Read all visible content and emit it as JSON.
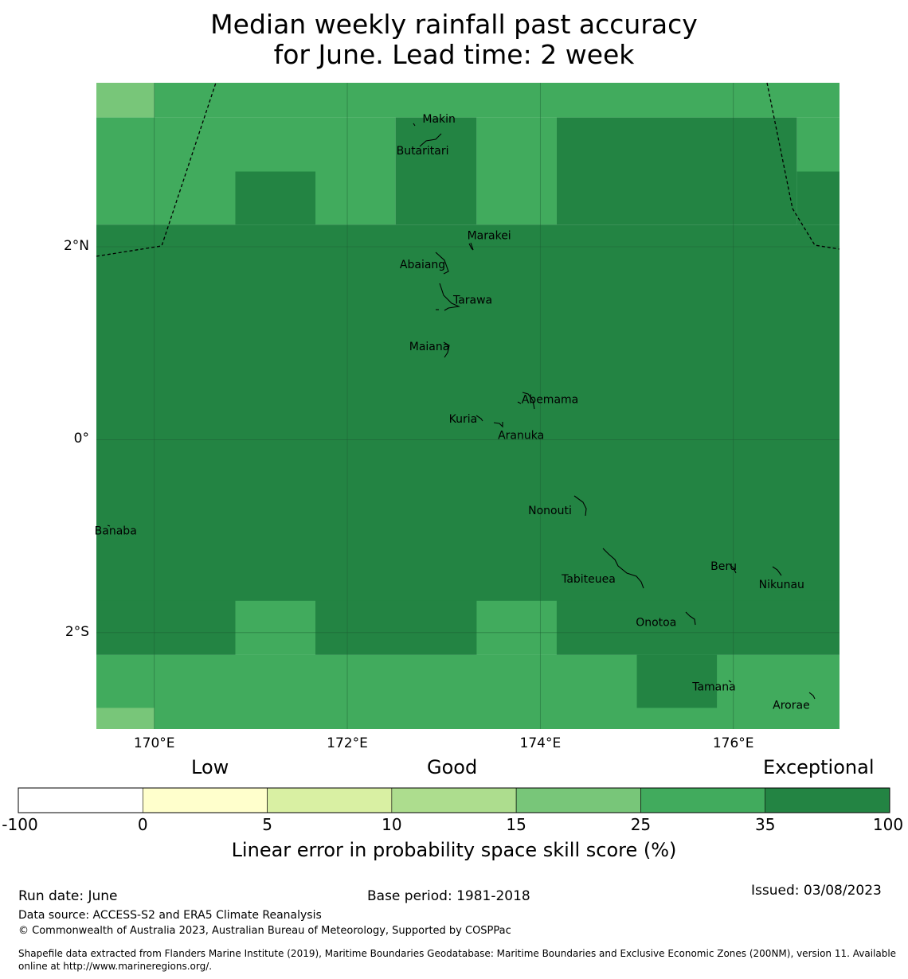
{
  "title_line1": "Median weekly rainfall past accuracy",
  "title_line2": "for June. Lead time: 2 week",
  "map": {
    "lon_range": [
      169.4,
      177.1
    ],
    "lat_range": [
      -3.0,
      3.7
    ],
    "xticks": [
      {
        "lon": 170,
        "label": "170°E"
      },
      {
        "lon": 172,
        "label": "172°E"
      },
      {
        "lon": 174,
        "label": "174°E"
      },
      {
        "lon": 176,
        "label": "176°E"
      }
    ],
    "yticks": [
      {
        "lat": 2,
        "label": "2°N"
      },
      {
        "lat": 0,
        "label": "0°"
      },
      {
        "lat": -2,
        "label": "2°S"
      }
    ],
    "skill_grid_cells": [
      {
        "lon": [
          169.4,
          170.0
        ],
        "lat": [
          3.34,
          3.7
        ],
        "class": "15-25"
      },
      {
        "lon": [
          170.0,
          177.1
        ],
        "lat": [
          3.34,
          3.7
        ],
        "class": "25-35"
      },
      {
        "lon": [
          169.4,
          172.5
        ],
        "lat": [
          3.34,
          2.23
        ],
        "class": "25-35"
      },
      {
        "lon": [
          172.5,
          173.34
        ],
        "lat": [
          3.34,
          2.23
        ],
        "class": "35-100"
      },
      {
        "lon": [
          173.34,
          174.17
        ],
        "lat": [
          3.34,
          2.23
        ],
        "class": "25-35"
      },
      {
        "lon": [
          174.17,
          176.66
        ],
        "lat": [
          3.34,
          2.23
        ],
        "class": "35-100"
      },
      {
        "lon": [
          176.66,
          177.1
        ],
        "lat": [
          3.34,
          2.23
        ],
        "class": "25-35"
      },
      {
        "lon": [
          170.84,
          171.67
        ],
        "lat": [
          2.78,
          2.23
        ],
        "class": "35-100"
      },
      {
        "lon": [
          176.66,
          177.1
        ],
        "lat": [
          2.78,
          2.23
        ],
        "class": "35-100"
      },
      {
        "lon": [
          169.4,
          177.1
        ],
        "lat": [
          2.23,
          -2.23
        ],
        "class": "35-100"
      },
      {
        "lon": [
          169.4,
          177.1
        ],
        "lat": [
          -2.23,
          -3.0
        ],
        "class": "25-35"
      },
      {
        "lon": [
          169.4,
          170.84
        ],
        "lat": [
          -1.67,
          -2.23
        ],
        "class": "35-100"
      },
      {
        "lon": [
          170.84,
          171.67
        ],
        "lat": [
          -1.67,
          -2.23
        ],
        "class": "25-35"
      },
      {
        "lon": [
          171.67,
          173.34
        ],
        "lat": [
          -1.67,
          -2.23
        ],
        "class": "35-100"
      },
      {
        "lon": [
          173.34,
          174.17
        ],
        "lat": [
          -1.67,
          -2.23
        ],
        "class": "25-35"
      },
      {
        "lon": [
          174.17,
          177.1
        ],
        "lat": [
          -1.67,
          -2.23
        ],
        "class": "35-100"
      },
      {
        "lon": [
          175.0,
          175.83
        ],
        "lat": [
          -2.23,
          -2.78
        ],
        "class": "35-100"
      },
      {
        "lon": [
          169.4,
          170.0
        ],
        "lat": [
          -2.78,
          -3.0
        ],
        "class": "15-25"
      }
    ],
    "places": [
      {
        "name": "Makin",
        "lon": 172.95,
        "lat": 3.33
      },
      {
        "name": "Butaritari",
        "lon": 172.78,
        "lat": 3.0
      },
      {
        "name": "Marakei",
        "lon": 173.47,
        "lat": 2.12
      },
      {
        "name": "Abaiang",
        "lon": 172.78,
        "lat": 1.82
      },
      {
        "name": "Tarawa",
        "lon": 173.3,
        "lat": 1.45
      },
      {
        "name": "Maiana",
        "lon": 172.85,
        "lat": 0.97
      },
      {
        "name": "Abemama",
        "lon": 174.1,
        "lat": 0.42
      },
      {
        "name": "Kuria",
        "lon": 173.2,
        "lat": 0.22
      },
      {
        "name": "Aranuka",
        "lon": 173.8,
        "lat": 0.05
      },
      {
        "name": "Nonouti",
        "lon": 174.1,
        "lat": -0.73
      },
      {
        "name": "Banaba",
        "lon": 169.6,
        "lat": -0.94
      },
      {
        "name": "Beru",
        "lon": 175.9,
        "lat": -1.31
      },
      {
        "name": "Tabiteuea",
        "lon": 174.5,
        "lat": -1.44
      },
      {
        "name": "Nikunau",
        "lon": 176.5,
        "lat": -1.5
      },
      {
        "name": "Onotoa",
        "lon": 175.2,
        "lat": -1.89
      },
      {
        "name": "Tamana",
        "lon": 175.8,
        "lat": -2.56
      },
      {
        "name": "Arorae",
        "lon": 176.6,
        "lat": -2.75
      }
    ]
  },
  "colorbar": {
    "categories": [
      {
        "label": "Low"
      },
      {
        "label": "Good"
      },
      {
        "label": "Exceptional"
      }
    ],
    "bins": [
      {
        "from": "-100",
        "to": "0",
        "color": "#ffffff"
      },
      {
        "from": "0",
        "to": "5",
        "color": "#ffffcc"
      },
      {
        "from": "5",
        "to": "10",
        "color": "#d9f0a3"
      },
      {
        "from": "10",
        "to": "15",
        "color": "#addd8e"
      },
      {
        "from": "15",
        "to": "25",
        "color": "#78c679"
      },
      {
        "from": "25",
        "to": "35",
        "color": "#41ab5d"
      },
      {
        "from": "35",
        "to": "100",
        "color": "#238443"
      }
    ],
    "ticks": [
      "-100",
      "0",
      "5",
      "10",
      "15",
      "25",
      "35",
      "100"
    ],
    "title": "Linear error in probability space skill score (%)"
  },
  "footer": {
    "run_date": "Run date: June",
    "base_period": "Base period: 1981-2018",
    "issued": "Issued: 03/08/2023",
    "data_source": "Data source: ACCESS-S2 and ERA5 Climate Reanalysis",
    "copyright": "© Commonwealth of Australia 2023, Australian Bureau of Meteorology, Supported by COSPPac",
    "shapefile_line1": "Shapefile data extracted from Flanders Marine Institute (2019), Maritime Boundaries Geodatabase: Maritime Boundaries and Exclusive Economic Zones (200NM), version 11. Available",
    "shapefile_line2": "online at http://www.marineregions.org/."
  }
}
